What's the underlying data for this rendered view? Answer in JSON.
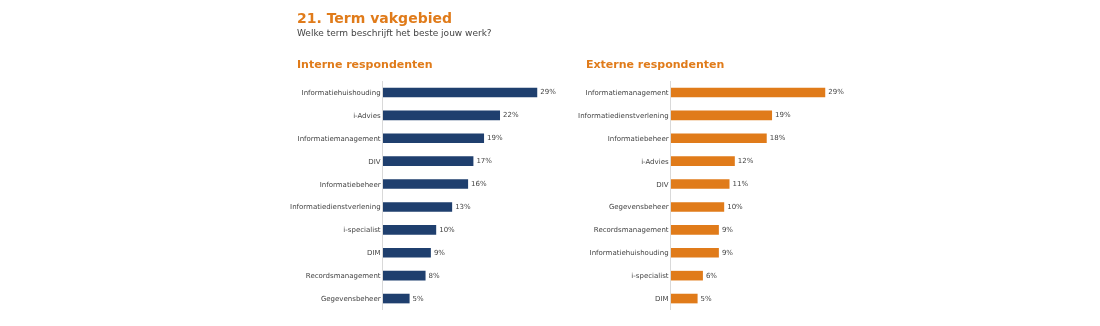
{
  "chart_data": [
    {
      "type": "bar",
      "orientation": "horizontal",
      "title": "Interne respondenten",
      "annotations": [
        "21. Term vakgebied",
        "Welke term beschrijft het beste jouw werk?"
      ],
      "categories": [
        "Informatiehuishouding",
        "i-Advies",
        "Informatiemanagement",
        "DIV",
        "Informatiebeheer",
        "Informatiedienstverlening",
        "i-specialist",
        "DIM",
        "Recordsmanagement",
        "Gegevensbeheer"
      ],
      "values": [
        29,
        22,
        19,
        17,
        16,
        13,
        10,
        9,
        8,
        5
      ],
      "value_labels": [
        "29%",
        "22%",
        "19%",
        "17%",
        "16%",
        "13%",
        "10%",
        "9%",
        "8%",
        "5%"
      ],
      "color": "#1f3f6e"
    },
    {
      "type": "bar",
      "orientation": "horizontal",
      "title": "Externe respondenten",
      "categories": [
        "Informatiemanagement",
        "Informatiedienstverlening",
        "Informatiebeheer",
        "i-Advies",
        "DIV",
        "Gegevensbeheer",
        "Recordsmanagement",
        "Informatiehuishouding",
        "i-specialist",
        "DIM"
      ],
      "values": [
        29,
        19,
        18,
        12,
        11,
        10,
        9,
        9,
        6,
        5
      ],
      "value_labels": [
        "29%",
        "19%",
        "18%",
        "12%",
        "11%",
        "10%",
        "9%",
        "9%",
        "6%",
        "5%"
      ],
      "color": "#e07b1a"
    }
  ]
}
